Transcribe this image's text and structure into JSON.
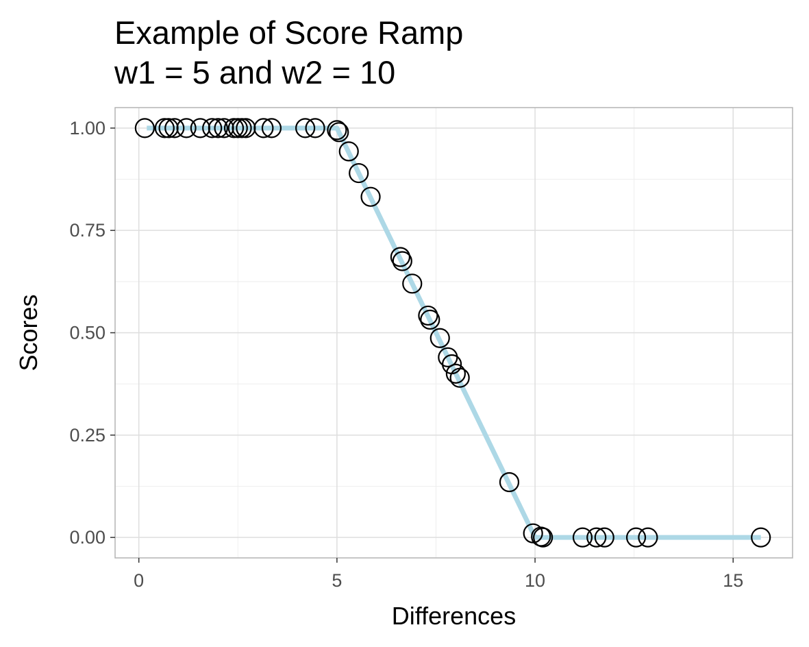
{
  "chart_data": {
    "type": "scatter",
    "title_lines": [
      "Example of Score Ramp",
      "w1 = 5 and w2 = 10"
    ],
    "xlabel": "Differences",
    "ylabel": "Scores",
    "xlim": [
      -0.6,
      16.5
    ],
    "ylim": [
      -0.05,
      1.05
    ],
    "x_ticks": [
      0,
      5,
      10,
      15
    ],
    "x_tick_labels": [
      "0",
      "5",
      "10",
      "15"
    ],
    "y_ticks": [
      0,
      0.25,
      0.5,
      0.75,
      1
    ],
    "y_tick_labels": [
      "0.00",
      "0.25",
      "0.50",
      "0.75",
      "1.00"
    ],
    "grid": true,
    "colors": {
      "line": "#add8e6",
      "points": "#000000",
      "panel_border": "#b3b3b3",
      "grid_major": "#dedede",
      "grid_minor": "#eeeeee"
    },
    "line": {
      "x": [
        0.2,
        5,
        10,
        15.7
      ],
      "y": [
        1,
        1,
        0,
        0
      ]
    },
    "points": {
      "x": [
        0.15,
        0.65,
        0.75,
        0.9,
        1.2,
        1.55,
        1.85,
        2.0,
        2.15,
        2.4,
        2.5,
        2.6,
        2.7,
        3.15,
        3.35,
        4.2,
        4.45,
        5.0,
        5.05,
        5.3,
        5.55,
        5.85,
        6.6,
        6.65,
        6.9,
        7.3,
        7.35,
        7.6,
        7.8,
        7.9,
        8.0,
        8.1,
        9.35,
        9.95,
        10.15,
        10.2,
        11.2,
        11.55,
        11.75,
        12.55,
        12.85,
        15.7
      ],
      "y": [
        1,
        1,
        1,
        1,
        1,
        1,
        1,
        1,
        1,
        1,
        1,
        1,
        1,
        1,
        1,
        1,
        1,
        0.995,
        0.99,
        0.943,
        0.89,
        0.832,
        0.685,
        0.675,
        0.62,
        0.542,
        0.532,
        0.487,
        0.44,
        0.423,
        0.4,
        0.39,
        0.135,
        0.01,
        0.002,
        0,
        0,
        0,
        0,
        0,
        0,
        0
      ]
    }
  }
}
